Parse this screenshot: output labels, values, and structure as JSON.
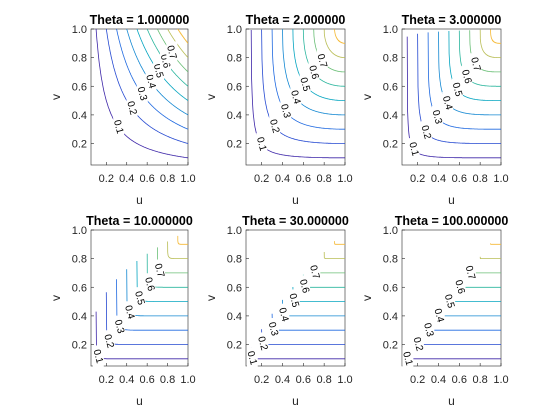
{
  "chart_data": [
    {
      "type": "contour",
      "title": "Theta = 1.000000",
      "theta": 1,
      "xlabel": "u",
      "ylabel": "v",
      "xlim": [
        0.05,
        1.0
      ],
      "ylim": [
        0.05,
        1.0
      ],
      "xticks": [
        "0.2",
        "0.4",
        "0.6",
        "0.8",
        "1.0"
      ],
      "yticks": [
        "0.2",
        "0.4",
        "0.6",
        "0.8",
        "1.0"
      ],
      "levels": [
        0.1,
        0.2,
        0.3,
        0.4,
        0.5,
        0.6,
        0.7,
        0.8,
        0.9
      ],
      "labeled_levels": [
        "0.1",
        "0.2",
        "0.3",
        "0.4",
        "0.5",
        "0.6",
        "0.7"
      ]
    },
    {
      "type": "contour",
      "title": "Theta = 2.000000",
      "theta": 2,
      "xlabel": "u",
      "ylabel": "v",
      "xlim": [
        0.05,
        1.0
      ],
      "ylim": [
        0.05,
        1.0
      ],
      "xticks": [
        "0.2",
        "0.4",
        "0.6",
        "0.8",
        "1.0"
      ],
      "yticks": [
        "0.2",
        "0.4",
        "0.6",
        "0.8",
        "1.0"
      ],
      "levels": [
        0.1,
        0.2,
        0.3,
        0.4,
        0.5,
        0.6,
        0.7,
        0.8,
        0.9
      ],
      "labeled_levels": [
        "0.1",
        "0.2",
        "0.3",
        "0.4",
        "0.5",
        "0.6",
        "0.7"
      ]
    },
    {
      "type": "contour",
      "title": "Theta = 3.000000",
      "theta": 3,
      "xlabel": "u",
      "ylabel": "v",
      "xlim": [
        0.05,
        1.0
      ],
      "ylim": [
        0.05,
        1.0
      ],
      "xticks": [
        "0.2",
        "0.4",
        "0.6",
        "0.8",
        "1.0"
      ],
      "yticks": [
        "0.2",
        "0.4",
        "0.6",
        "0.8",
        "1.0"
      ],
      "levels": [
        0.1,
        0.2,
        0.3,
        0.4,
        0.5,
        0.6,
        0.7,
        0.8,
        0.9
      ],
      "labeled_levels": [
        "0.1",
        "0.2",
        "0.3",
        "0.4",
        "0.5",
        "0.6",
        "0.7"
      ]
    },
    {
      "type": "contour",
      "title": "Theta = 10.000000",
      "theta": 10,
      "xlabel": "u",
      "ylabel": "v",
      "xlim": [
        0.05,
        1.0
      ],
      "ylim": [
        0.05,
        1.0
      ],
      "xticks": [
        "0.2",
        "0.4",
        "0.6",
        "0.8",
        "1.0"
      ],
      "yticks": [
        "0.2",
        "0.4",
        "0.6",
        "0.8",
        "1.0"
      ],
      "levels": [
        0.1,
        0.2,
        0.3,
        0.4,
        0.5,
        0.6,
        0.7,
        0.8,
        0.9
      ],
      "labeled_levels": [
        "0.1",
        "0.2",
        "0.3",
        "0.4",
        "0.5",
        "0.6",
        "0.7"
      ]
    },
    {
      "type": "contour",
      "title": "Theta = 30.000000",
      "theta": 30,
      "xlabel": "u",
      "ylabel": "v",
      "xlim": [
        0.05,
        1.0
      ],
      "ylim": [
        0.05,
        1.0
      ],
      "xticks": [
        "0.2",
        "0.4",
        "0.6",
        "0.8",
        "1.0"
      ],
      "yticks": [
        "0.2",
        "0.4",
        "0.6",
        "0.8",
        "1.0"
      ],
      "levels": [
        0.1,
        0.2,
        0.3,
        0.4,
        0.5,
        0.6,
        0.7,
        0.8,
        0.9
      ],
      "labeled_levels": [
        "0.1",
        "0.2",
        "0.3",
        "0.4",
        "0.5",
        "0.6",
        "0.7"
      ]
    },
    {
      "type": "contour",
      "title": "Theta = 100.000000",
      "theta": 100,
      "xlabel": "u",
      "ylabel": "v",
      "xlim": [
        0.05,
        1.0
      ],
      "ylim": [
        0.05,
        1.0
      ],
      "xticks": [
        "0.2",
        "0.4",
        "0.6",
        "0.8",
        "1.0"
      ],
      "yticks": [
        "0.2",
        "0.4",
        "0.6",
        "0.8",
        "1.0"
      ],
      "levels": [
        0.1,
        0.2,
        0.3,
        0.4,
        0.5,
        0.6,
        0.7,
        0.8,
        0.9
      ],
      "labeled_levels": [
        "0.1",
        "0.2",
        "0.3",
        "0.4",
        "0.5",
        "0.6",
        "0.7"
      ]
    }
  ],
  "colors": {
    "level_colors": [
      "#3d26a8",
      "#2549d1",
      "#1f69e0",
      "#1488d2",
      "#06a5c0",
      "#2cb69e",
      "#6bbf77",
      "#b9bd55",
      "#f5b935"
    ]
  }
}
